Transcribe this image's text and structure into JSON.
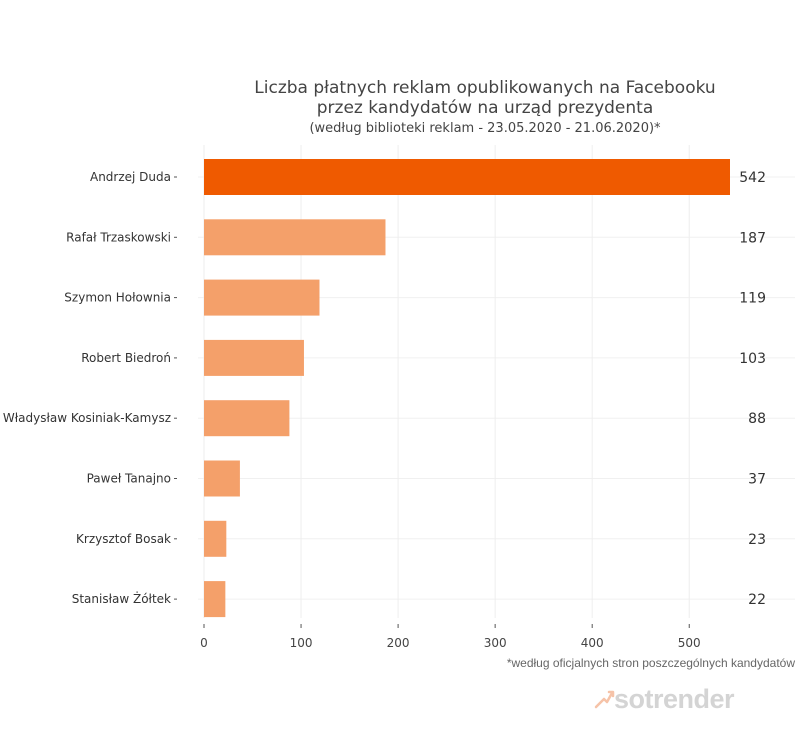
{
  "chart_data": {
    "type": "bar",
    "orientation": "horizontal",
    "title_lines": [
      "Liczba płatnych reklam opublikowanych na  Facebooku",
      "przez kandydatów na urząd prezydenta"
    ],
    "subtitle": "(według biblioteki reklam - 23.05.2020 - 21.06.2020)*",
    "categories": [
      "Andrzej Duda",
      "Rafał Trzaskowski",
      "Szymon Hołownia",
      "Robert Biedroń",
      "Władysław Kosiniak-Kamysz",
      "Paweł Tanajno",
      "Krzysztof Bosak",
      "Stanisław Żółtek"
    ],
    "values": [
      542,
      187,
      119,
      103,
      88,
      37,
      23,
      22
    ],
    "xlim": [
      0,
      542
    ],
    "xticks": [
      0,
      100,
      200,
      300,
      400,
      500
    ],
    "grid": true,
    "colors": {
      "highlight": "#ef5a00",
      "default": "#f4a06a"
    }
  },
  "footnote": "*według oficjalnych stron poszczególnych kandydatów",
  "brand": {
    "name": "sotrender",
    "icon": "sotrender-logo-icon"
  }
}
